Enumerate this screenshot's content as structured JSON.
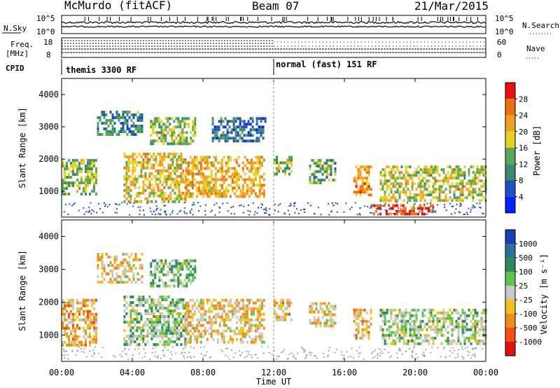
{
  "header": {
    "station": "McMurdo (fitACF)",
    "beam": "Beam 07",
    "date": "21/Mar/2015"
  },
  "noise_panel": {
    "left_label": "N.Sky",
    "right_label": "N.Search",
    "left_ticks": [
      "10^5",
      "10^0"
    ],
    "right_ticks": [
      "10^5",
      "10^0"
    ]
  },
  "freq_panel": {
    "left_label_line1": "Freq.",
    "left_label_line2": "[MHz]",
    "left_ticks": [
      "18",
      "8"
    ],
    "right_label": "Nave",
    "right_ticks": [
      "60",
      "0"
    ],
    "cpid_label": "CPID",
    "cpid_segments": [
      {
        "text": "themis 3300 RF",
        "start_hour": 0
      },
      {
        "text": "normal (fast) 151 RF",
        "start_hour": 12
      }
    ]
  },
  "time_axis": {
    "label": "Time UT",
    "ticks": [
      "00:00",
      "04:00",
      "08:00",
      "12:00",
      "16:00",
      "20:00",
      "00:00"
    ],
    "hours": [
      0,
      4,
      8,
      12,
      16,
      20,
      24
    ]
  },
  "power_panel": {
    "ylabel": "Slant Range [km]",
    "yticks": [
      1000,
      2000,
      3000,
      4000
    ],
    "colorbar_label": "Power [dB]",
    "colorbar_ticks": [
      "28",
      "24",
      "20",
      "16",
      "12",
      "8",
      "4"
    ]
  },
  "velocity_panel": {
    "ylabel": "Slant Range [km]",
    "yticks": [
      1000,
      2000,
      3000,
      4000
    ],
    "colorbar_label": "Velocity [m s⁻¹]",
    "colorbar_ticks": [
      "1000",
      "500",
      "100",
      "25",
      "-25",
      "-100",
      "-500",
      "-1000"
    ]
  },
  "colors": {
    "power_scale": [
      "#0020ff",
      "#2050c0",
      "#3a8a70",
      "#58a858",
      "#e8d020",
      "#f0a020",
      "#f07010",
      "#e81010"
    ],
    "velocity_scale": [
      "#1b3db8",
      "#2e6e9e",
      "#2d8a5a",
      "#62c24a",
      "#c8c8c8",
      "#f0c020",
      "#f08a18",
      "#f05010",
      "#e01010"
    ]
  },
  "chart_data": [
    {
      "type": "heatmap",
      "title": "Power",
      "xlabel": "Time UT",
      "ylabel": "Slant Range [km]",
      "xlim": [
        0,
        24
      ],
      "ylim": [
        200,
        4500
      ],
      "colorbar_range": [
        0,
        30
      ],
      "echo_regions": [
        {
          "start_hour": 0.0,
          "end_hour": 2.0,
          "range_km": [
            900,
            2000
          ],
          "power_db": 14
        },
        {
          "start_hour": 2.0,
          "end_hour": 4.5,
          "range_km": [
            2800,
            3500
          ],
          "power_db": 10
        },
        {
          "start_hour": 3.5,
          "end_hour": 7.0,
          "range_km": [
            700,
            2200
          ],
          "power_db": 18
        },
        {
          "start_hour": 5.0,
          "end_hour": 7.5,
          "range_km": [
            2500,
            3300
          ],
          "power_db": 14
        },
        {
          "start_hour": 7.0,
          "end_hour": 11.5,
          "range_km": [
            800,
            2100
          ],
          "power_db": 20
        },
        {
          "start_hour": 8.5,
          "end_hour": 11.5,
          "range_km": [
            2600,
            3300
          ],
          "power_db": 8
        },
        {
          "start_hour": 12.0,
          "end_hour": 13.0,
          "range_km": [
            1500,
            2100
          ],
          "power_db": 14
        },
        {
          "start_hour": 14.0,
          "end_hour": 15.5,
          "range_km": [
            1300,
            2000
          ],
          "power_db": 12
        },
        {
          "start_hour": 16.5,
          "end_hour": 17.5,
          "range_km": [
            900,
            1800
          ],
          "power_db": 22
        },
        {
          "start_hour": 17.5,
          "end_hour": 21.0,
          "range_km": [
            300,
            600
          ],
          "power_db": 26
        },
        {
          "start_hour": 18.0,
          "end_hour": 24.0,
          "range_km": [
            700,
            1800
          ],
          "power_db": 16
        }
      ]
    },
    {
      "type": "heatmap",
      "title": "Velocity",
      "xlabel": "Time UT",
      "ylabel": "Slant Range [km]",
      "xlim": [
        0,
        24
      ],
      "ylim": [
        200,
        4500
      ],
      "colorbar_range": [
        -1000,
        1000
      ],
      "echo_regions": [
        {
          "start_hour": 0.0,
          "end_hour": 2.0,
          "range_km": [
            700,
            2100
          ],
          "velocity_ms": -300
        },
        {
          "start_hour": 2.0,
          "end_hour": 4.5,
          "range_km": [
            2600,
            3500
          ],
          "velocity_ms": -150
        },
        {
          "start_hour": 3.5,
          "end_hour": 7.0,
          "range_km": [
            700,
            2200
          ],
          "velocity_ms": 150
        },
        {
          "start_hour": 5.0,
          "end_hour": 7.5,
          "range_km": [
            2500,
            3300
          ],
          "velocity_ms": 200
        },
        {
          "start_hour": 7.0,
          "end_hour": 11.5,
          "range_km": [
            800,
            2100
          ],
          "velocity_ms": -200
        },
        {
          "start_hour": 12.0,
          "end_hour": 13.0,
          "range_km": [
            1500,
            2100
          ],
          "velocity_ms": -250
        },
        {
          "start_hour": 14.0,
          "end_hour": 15.5,
          "range_km": [
            1300,
            2000
          ],
          "velocity_ms": -150
        },
        {
          "start_hour": 16.5,
          "end_hour": 17.5,
          "range_km": [
            900,
            1800
          ],
          "velocity_ms": -300
        },
        {
          "start_hour": 18.0,
          "end_hour": 24.0,
          "range_km": [
            700,
            1800
          ],
          "velocity_ms": 120
        }
      ]
    }
  ]
}
